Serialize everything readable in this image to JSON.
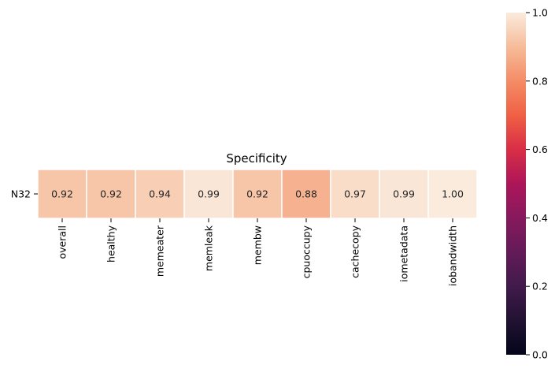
{
  "chart_data": {
    "type": "heatmap",
    "title": "Specificity",
    "rows": [
      "N32"
    ],
    "columns": [
      "overall",
      "healthy",
      "memeater",
      "memleak",
      "membw",
      "cpuoccupy",
      "cachecopy",
      "iometadata",
      "iobandwidth"
    ],
    "values": [
      [
        0.92,
        0.92,
        0.94,
        0.99,
        0.92,
        0.88,
        0.97,
        0.99,
        1.0
      ]
    ],
    "cell_labels": [
      "0.92",
      "0.92",
      "0.94",
      "0.99",
      "0.92",
      "0.88",
      "0.97",
      "0.99",
      "1.00"
    ],
    "colormap": "rocket",
    "colorbar": {
      "range": [
        0.0,
        1.0
      ],
      "ticks": [
        0.0,
        0.2,
        0.4,
        0.6,
        0.8,
        1.0
      ],
      "tick_labels": [
        "0.0",
        "0.2",
        "0.4",
        "0.6",
        "0.8",
        "1.0"
      ]
    }
  }
}
